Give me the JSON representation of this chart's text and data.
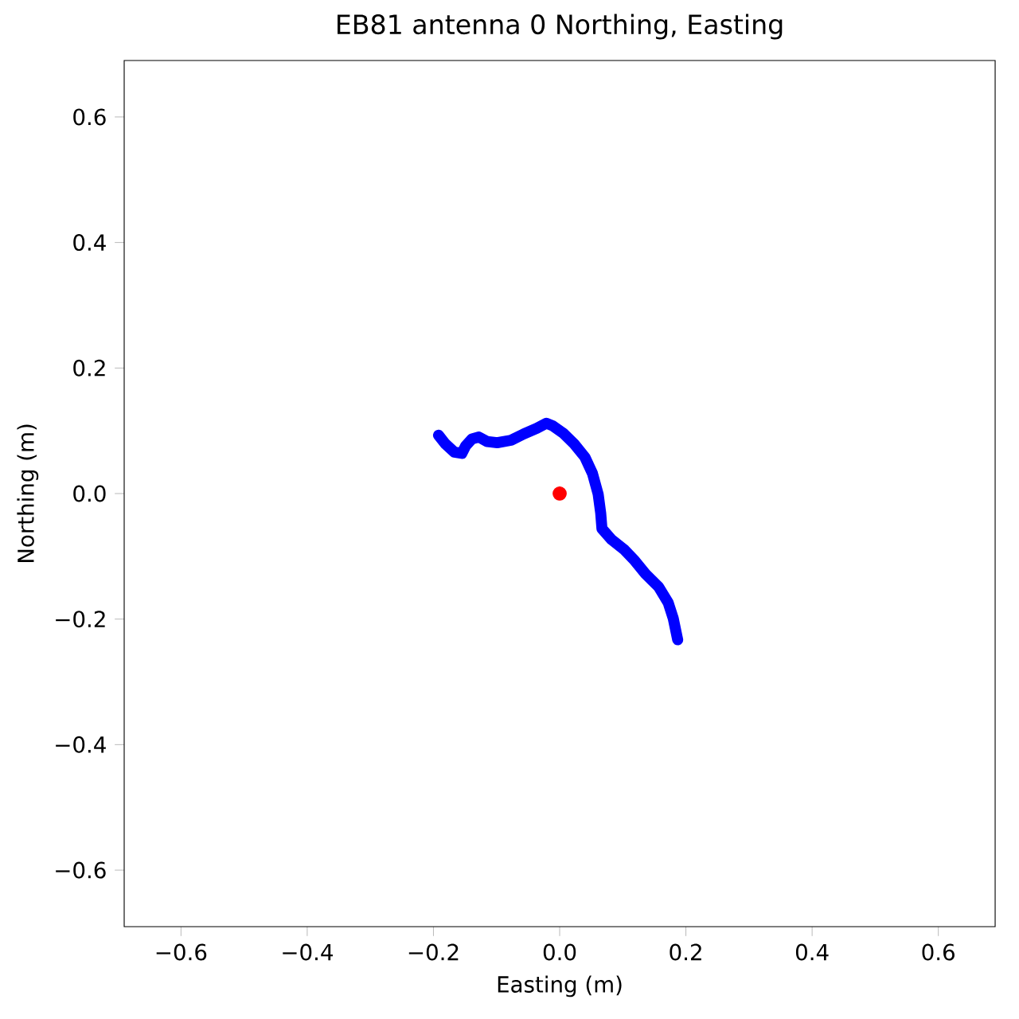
{
  "chart_data": {
    "type": "scatter",
    "title": "EB81 antenna 0 Northing, Easting",
    "xlabel": "Easting (m)",
    "ylabel": "Northing (m)",
    "xlim": [
      -0.69,
      0.69
    ],
    "ylim": [
      -0.69,
      0.69
    ],
    "xticks": [
      {
        "value": -0.6,
        "label": "−0.6"
      },
      {
        "value": -0.4,
        "label": "−0.4"
      },
      {
        "value": -0.2,
        "label": "−0.2"
      },
      {
        "value": 0,
        "label": "0.0"
      },
      0.2,
      0.4,
      0.6
    ],
    "yticks": [
      {
        "value": -0.6,
        "label": "−0.6"
      },
      {
        "value": -0.4,
        "label": "−0.4"
      },
      {
        "value": -0.2,
        "label": "−0.2"
      },
      {
        "value": 0,
        "label": "0.0"
      },
      0.2,
      0.4,
      0.6
    ],
    "series": [
      {
        "type": "line",
        "color": "#0000ff",
        "x": [
          -0.192,
          -0.181,
          -0.167,
          -0.155,
          -0.149,
          -0.139,
          -0.128,
          -0.115,
          -0.099,
          -0.077,
          -0.057,
          -0.036,
          -0.021,
          -0.011,
          0.006,
          0.023,
          0.04,
          0.052,
          0.061,
          0.065,
          0.067,
          0.082,
          0.103,
          0.119,
          0.136,
          0.157,
          0.172,
          0.18,
          0.187
        ],
        "values": [
          0.093,
          0.079,
          0.066,
          0.064,
          0.076,
          0.087,
          0.09,
          0.083,
          0.081,
          0.085,
          0.095,
          0.104,
          0.112,
          0.108,
          0.096,
          0.079,
          0.058,
          0.032,
          -0.001,
          -0.031,
          -0.056,
          -0.073,
          -0.09,
          -0.107,
          -0.128,
          -0.149,
          -0.174,
          -0.199,
          -0.233
        ]
      },
      {
        "marker": "circle",
        "color": "#ff0000",
        "x": [
          0.0
        ],
        "values": [
          0.0
        ]
      }
    ]
  }
}
